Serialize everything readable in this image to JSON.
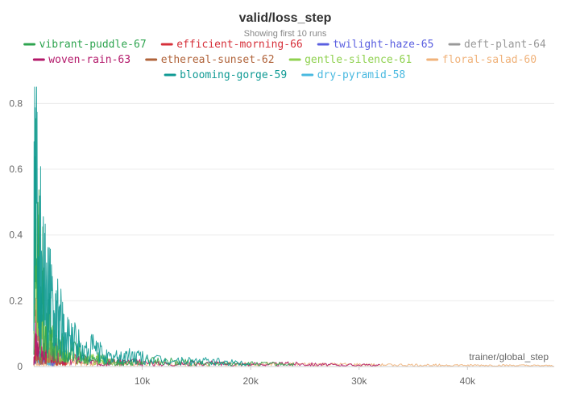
{
  "chart_data": {
    "type": "line",
    "title": "valid/loss_step",
    "subtitle": "Showing first 10 runs",
    "xlabel": "trainer/global_step",
    "ylabel": "",
    "xlim": [
      0,
      48000
    ],
    "ylim": [
      0,
      0.85
    ],
    "x_ticks": [
      10000,
      20000,
      30000,
      40000
    ],
    "x_tick_labels": [
      "10k",
      "20k",
      "30k",
      "40k"
    ],
    "y_ticks": [
      0,
      0.2,
      0.4,
      0.6,
      0.8
    ],
    "y_tick_labels": [
      "0",
      "0.2",
      "0.4",
      "0.6",
      "0.8"
    ],
    "grid": "horizontal",
    "legend_position": "top",
    "series": [
      {
        "name": "vibrant-puddle-67",
        "color": "#2ea44f",
        "end_step": 24000,
        "points": [
          [
            0,
            0.05
          ],
          [
            100,
            0.78
          ],
          [
            200,
            0.62
          ],
          [
            300,
            0.18
          ],
          [
            450,
            0.55
          ],
          [
            600,
            0.11
          ],
          [
            800,
            0.35
          ],
          [
            1000,
            0.07
          ],
          [
            1400,
            0.16
          ],
          [
            1800,
            0.05
          ],
          [
            2400,
            0.09
          ],
          [
            3000,
            0.03
          ],
          [
            4000,
            0.06
          ],
          [
            5000,
            0.02
          ],
          [
            6000,
            0.03
          ],
          [
            8000,
            0.015
          ],
          [
            12000,
            0.02
          ],
          [
            16000,
            0.01
          ],
          [
            20000,
            0.01
          ],
          [
            24000,
            0.008
          ]
        ]
      },
      {
        "name": "efficient-morning-66",
        "color": "#d6303a",
        "end_step": 3000,
        "points": [
          [
            0,
            0.01
          ],
          [
            150,
            0.08
          ],
          [
            300,
            0.2
          ],
          [
            500,
            0.06
          ],
          [
            700,
            0.12
          ],
          [
            1000,
            0.04
          ],
          [
            1500,
            0.06
          ],
          [
            2000,
            0.02
          ],
          [
            3000,
            0.01
          ]
        ]
      },
      {
        "name": "twilight-haze-65",
        "color": "#5a5fe0",
        "end_step": 2000,
        "points": [
          [
            0,
            0.01
          ],
          [
            200,
            0.05
          ],
          [
            500,
            0.03
          ],
          [
            900,
            0.04
          ],
          [
            1400,
            0.02
          ],
          [
            2000,
            0.01
          ]
        ]
      },
      {
        "name": "deft-plant-64",
        "color": "#999999",
        "end_step": 2000,
        "points": [
          [
            0,
            0.01
          ],
          [
            300,
            0.03
          ],
          [
            700,
            0.02
          ],
          [
            1200,
            0.02
          ],
          [
            2000,
            0.01
          ]
        ]
      },
      {
        "name": "woven-rain-63",
        "color": "#b3186a",
        "end_step": 32000,
        "points": [
          [
            0,
            0.01
          ],
          [
            150,
            0.07
          ],
          [
            300,
            0.21
          ],
          [
            450,
            0.05
          ],
          [
            600,
            0.12
          ],
          [
            800,
            0.04
          ],
          [
            1000,
            0.08
          ],
          [
            1500,
            0.03
          ],
          [
            2000,
            0.05
          ],
          [
            3000,
            0.02
          ],
          [
            4000,
            0.03
          ],
          [
            6000,
            0.012
          ],
          [
            8000,
            0.018
          ],
          [
            12000,
            0.01
          ],
          [
            16000,
            0.012
          ],
          [
            20000,
            0.008
          ],
          [
            24000,
            0.01
          ],
          [
            28000,
            0.006
          ],
          [
            32000,
            0.005
          ]
        ]
      },
      {
        "name": "ethereal-sunset-62",
        "color": "#b0633a",
        "end_step": 3000,
        "points": [
          [
            0,
            0.01
          ],
          [
            200,
            0.06
          ],
          [
            500,
            0.03
          ],
          [
            1000,
            0.04
          ],
          [
            2000,
            0.02
          ],
          [
            3000,
            0.01
          ]
        ]
      },
      {
        "name": "gentle-silence-61",
        "color": "#8fd14f",
        "end_step": 8000,
        "points": [
          [
            0,
            0.3
          ],
          [
            120,
            0.56
          ],
          [
            260,
            0.22
          ],
          [
            400,
            0.38
          ],
          [
            600,
            0.12
          ],
          [
            900,
            0.22
          ],
          [
            1200,
            0.06
          ],
          [
            1800,
            0.1
          ],
          [
            2500,
            0.03
          ],
          [
            3500,
            0.05
          ],
          [
            4500,
            0.02
          ],
          [
            5500,
            0.03
          ],
          [
            7000,
            0.015
          ],
          [
            8000,
            0.01
          ]
        ]
      },
      {
        "name": "floral-salad-60",
        "color": "#f0b27a",
        "end_step": 48000,
        "points": [
          [
            0,
            0.01
          ],
          [
            2000,
            0.02
          ],
          [
            6000,
            0.01
          ],
          [
            10000,
            0.012
          ],
          [
            16000,
            0.01
          ],
          [
            20000,
            0.009
          ],
          [
            26000,
            0.008
          ],
          [
            32000,
            0.006
          ],
          [
            38000,
            0.005
          ],
          [
            44000,
            0.004
          ],
          [
            48000,
            0.003
          ]
        ]
      },
      {
        "name": "blooming-gorge-59",
        "color": "#0f9a94",
        "end_step": 20000,
        "points": [
          [
            0,
            0.53
          ],
          [
            80,
            0.84
          ],
          [
            160,
            0.6
          ],
          [
            260,
            0.8
          ],
          [
            380,
            0.45
          ],
          [
            520,
            0.68
          ],
          [
            700,
            0.3
          ],
          [
            900,
            0.5
          ],
          [
            1100,
            0.22
          ],
          [
            1400,
            0.34
          ],
          [
            1800,
            0.13
          ],
          [
            2300,
            0.19
          ],
          [
            2900,
            0.09
          ],
          [
            3600,
            0.12
          ],
          [
            4500,
            0.05
          ],
          [
            5500,
            0.07
          ],
          [
            7000,
            0.03
          ],
          [
            9000,
            0.04
          ],
          [
            12000,
            0.02
          ],
          [
            15000,
            0.02
          ],
          [
            18000,
            0.015
          ],
          [
            20000,
            0.01
          ]
        ]
      },
      {
        "name": "dry-pyramid-58",
        "color": "#49b9e0",
        "end_step": 1500,
        "points": [
          [
            0,
            0.02
          ],
          [
            200,
            0.06
          ],
          [
            500,
            0.03
          ],
          [
            900,
            0.04
          ],
          [
            1500,
            0.01
          ]
        ]
      }
    ]
  }
}
